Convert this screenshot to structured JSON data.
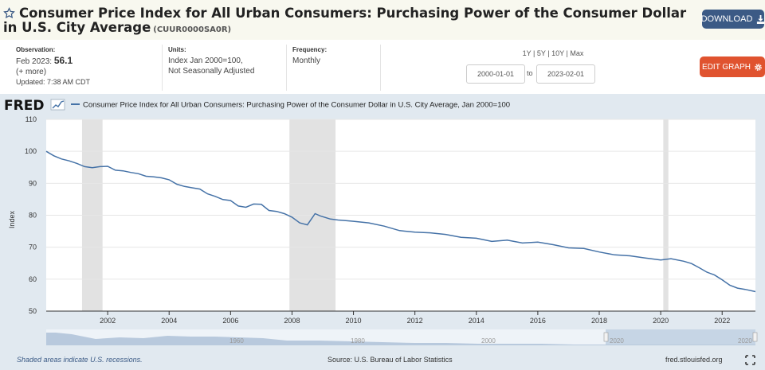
{
  "header": {
    "title": "Consumer Price Index for All Urban Consumers: Purchasing Power of the Consumer Dollar in U.S. City Average",
    "series_id": "(CUUR0000SA0R)",
    "download_label": "DOWNLOAD",
    "edit_label": "EDIT GRAPH"
  },
  "meta": {
    "observation_label": "Observation:",
    "observation_date": "Feb 2023:",
    "observation_value": "56.1",
    "more": "(+ more)",
    "updated": "Updated: 7:38 AM CDT",
    "units_label": "Units:",
    "units_line1": "Index Jan 2000=100,",
    "units_line2": "Not Seasonally Adjusted",
    "frequency_label": "Frequency:",
    "frequency_value": "Monthly"
  },
  "ranges": {
    "r1y": "1Y",
    "r5y": "5Y",
    "r10y": "10Y",
    "rmax": "Max",
    "sep": "|"
  },
  "dates": {
    "start": "2000-01-01",
    "to": "to",
    "end": "2023-02-01"
  },
  "icons": {
    "star": "star-icon",
    "download": "download-icon",
    "gear": "gear-icon",
    "logo_graph": "fred-graph-icon",
    "fullscreen": "fullscreen-icon"
  },
  "colors": {
    "line": "#4572a7",
    "recession": "#e2e2e2",
    "download_btn": "#3b5a85",
    "edit_btn": "#e0532f",
    "chart_bg": "#e1e9f0"
  },
  "footer": {
    "recessions_note": "Shaded areas indicate U.S. recessions.",
    "source": "Source: U.S. Bureau of Labor Statistics",
    "site": "fred.stlouisfed.org"
  },
  "logo": {
    "text": "FRED"
  },
  "navigator": {
    "labels": [
      "1960",
      "1980",
      "2000",
      "2020"
    ]
  },
  "chart_data": {
    "type": "line",
    "title": "",
    "legend": "Consumer Price Index for All Urban Consumers: Purchasing Power of the Consumer Dollar in U.S. City Average, Jan 2000=100",
    "xlabel": "",
    "ylabel": "Index",
    "xlim": [
      "2000-01-01",
      "2023-02-01"
    ],
    "ylim": [
      50,
      110
    ],
    "yticks": [
      50,
      60,
      70,
      80,
      90,
      100,
      110
    ],
    "xticks": [
      "2002",
      "2004",
      "2006",
      "2008",
      "2010",
      "2012",
      "2014",
      "2016",
      "2018",
      "2020",
      "2022"
    ],
    "grid": true,
    "recessions": [
      [
        "2001-03",
        "2001-11"
      ],
      [
        "2007-12",
        "2009-06"
      ],
      [
        "2020-02",
        "2020-04"
      ]
    ],
    "series": [
      {
        "x": [
          "2000-01",
          "2000-04",
          "2000-07",
          "2000-10",
          "2001-01",
          "2001-04",
          "2001-07",
          "2001-10",
          "2002-01",
          "2002-04",
          "2002-07",
          "2002-10",
          "2003-01",
          "2003-04",
          "2003-07",
          "2003-10",
          "2004-01",
          "2004-04",
          "2004-07",
          "2004-10",
          "2005-01",
          "2005-04",
          "2005-07",
          "2005-10",
          "2006-01",
          "2006-04",
          "2006-07",
          "2006-10",
          "2007-01",
          "2007-04",
          "2007-07",
          "2007-10",
          "2008-01",
          "2008-04",
          "2008-07",
          "2008-10",
          "2008-12",
          "2009-04",
          "2009-07",
          "2009-10",
          "2010-01",
          "2010-07",
          "2011-01",
          "2011-07",
          "2012-01",
          "2012-07",
          "2013-01",
          "2013-07",
          "2014-01",
          "2014-07",
          "2015-01",
          "2015-07",
          "2016-01",
          "2016-07",
          "2017-01",
          "2017-07",
          "2018-01",
          "2018-07",
          "2019-01",
          "2019-07",
          "2020-01",
          "2020-05",
          "2020-10",
          "2021-01",
          "2021-04",
          "2021-07",
          "2021-10",
          "2022-01",
          "2022-04",
          "2022-07",
          "2022-10",
          "2023-02"
        ],
        "y": [
          100,
          98.6,
          97.6,
          97.0,
          96.2,
          95.2,
          94.9,
          95.2,
          95.3,
          94.1,
          93.9,
          93.4,
          93.0,
          92.2,
          92.0,
          91.7,
          91.1,
          89.7,
          89.0,
          88.6,
          88.2,
          86.7,
          85.9,
          84.9,
          84.6,
          82.9,
          82.5,
          83.5,
          83.4,
          81.5,
          81.2,
          80.5,
          79.4,
          77.6,
          77.0,
          80.5,
          79.8,
          78.8,
          78.5,
          78.3,
          78.1,
          77.6,
          76.6,
          75.2,
          74.7,
          74.5,
          74.0,
          73.1,
          72.8,
          71.8,
          72.2,
          71.3,
          71.6,
          70.8,
          69.8,
          69.6,
          68.5,
          67.6,
          67.3,
          66.6,
          66.0,
          66.4,
          65.6,
          64.9,
          63.6,
          62.2,
          61.3,
          59.8,
          58.1,
          57.2,
          56.8,
          56.1
        ]
      }
    ]
  }
}
